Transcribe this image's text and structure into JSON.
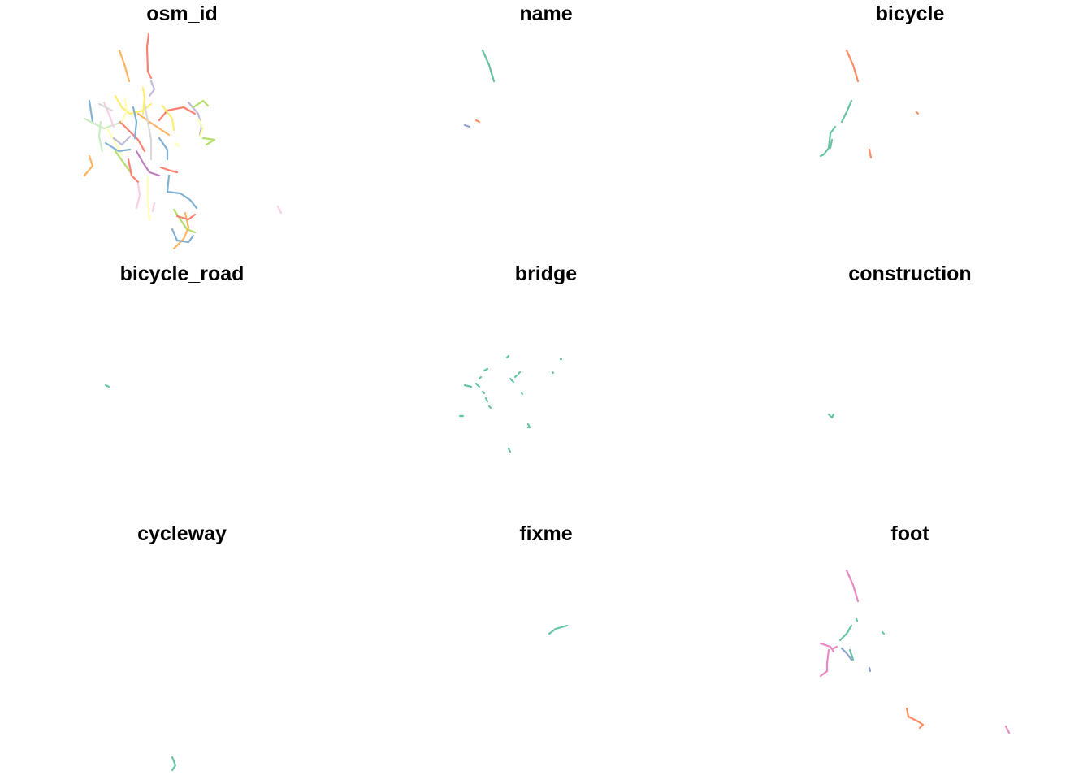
{
  "panels": [
    {
      "id": "osm_id",
      "title": "osm_id"
    },
    {
      "id": "name",
      "title": "name"
    },
    {
      "id": "bicycle",
      "title": "bicycle"
    },
    {
      "id": "bicycle_road",
      "title": "bicycle_road"
    },
    {
      "id": "bridge",
      "title": "bridge"
    },
    {
      "id": "construction",
      "title": "construction"
    },
    {
      "id": "cycleway",
      "title": "cycleway"
    },
    {
      "id": "fixme",
      "title": "fixme"
    },
    {
      "id": "foot",
      "title": "foot"
    }
  ],
  "palette": [
    "#66c2a5",
    "#fc8d62",
    "#8da0cb",
    "#e78ac3",
    "#a6d854",
    "#ffd92f",
    "#e5c494",
    "#b3b3b3",
    "#8dd3c7",
    "#ffffb3",
    "#bebada",
    "#fb8072",
    "#80b1d3",
    "#fdb462",
    "#b3de69",
    "#fccde5",
    "#d9d9d9",
    "#bc80bd",
    "#ccebc5",
    "#ffed6f"
  ]
}
